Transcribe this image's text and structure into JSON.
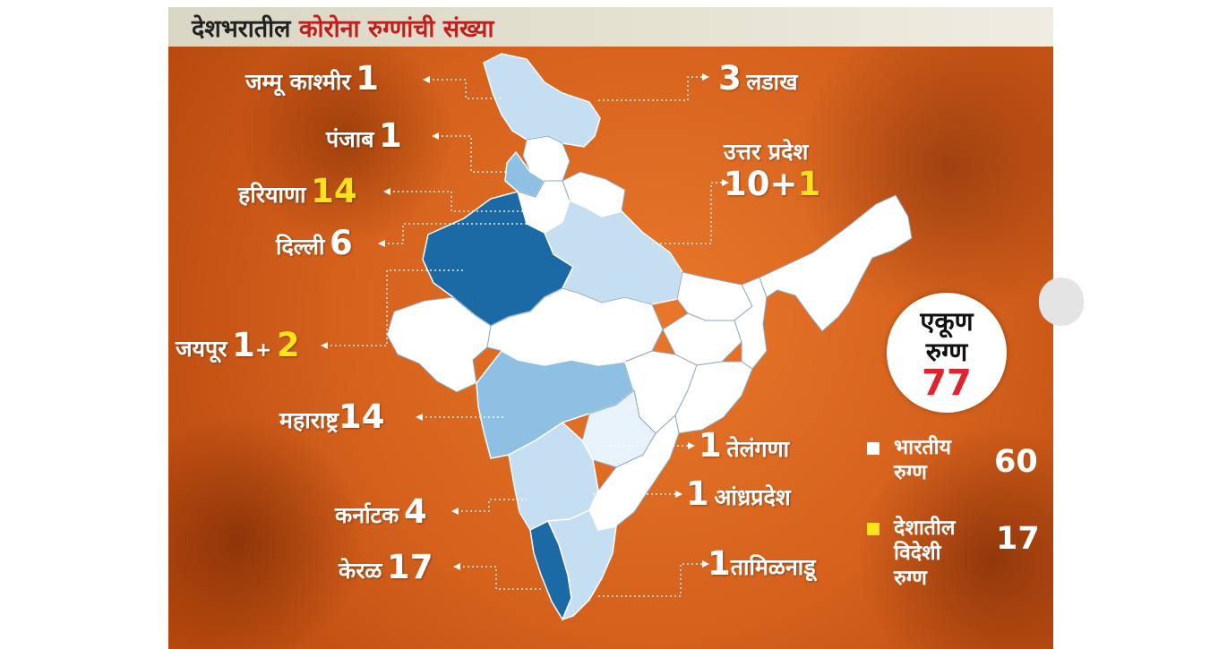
{
  "title": {
    "part1": "देशभरातील",
    "part2": "कोरोना रुग्णांची संख्या"
  },
  "states": {
    "jammu_kashmir": {
      "name": "जम्मू काश्मीर",
      "count": "1"
    },
    "punjab": {
      "name": "पंजाब",
      "count": "1"
    },
    "haryana": {
      "name": "हरियाणा",
      "count": "14"
    },
    "delhi": {
      "name": "दिल्ली",
      "count": "6"
    },
    "jaipur": {
      "name": "जयपूर",
      "count": "1",
      "plus": "+",
      "foreign": "2"
    },
    "maharashtra": {
      "name": "महाराष्ट्र",
      "count": "14"
    },
    "karnataka": {
      "name": "कर्नाटक",
      "count": "4"
    },
    "kerala": {
      "name": "केरळ",
      "count": "17"
    },
    "ladakh": {
      "name": "लडाख",
      "count": "3"
    },
    "uttar_pradesh": {
      "name": "उत्तर प्रदेश",
      "count": "10",
      "plus": "+",
      "foreign": "1"
    },
    "telangana": {
      "name": "तेलंगणा",
      "count": "1"
    },
    "andhra_pradesh": {
      "name": "आंध्रप्रदेश",
      "count": "1"
    },
    "tamil_nadu": {
      "name": "तामिळनाडू",
      "count": "1"
    }
  },
  "total": {
    "line1": "एकूण",
    "line2": "रुग्ण",
    "value": "77"
  },
  "legend": {
    "indian": {
      "line1": "भारतीय",
      "line2": "रुग्ण",
      "value": "60",
      "color": "#ffffff"
    },
    "foreign": {
      "line1": "देशातील",
      "line2": "विदेशी",
      "line3": "रुग्ण",
      "value": "17",
      "color": "#ffe21a"
    }
  },
  "colors": {
    "dark_state": "#1b6aa6",
    "mid_state": "#8ec0e4",
    "light_state": "#c6def2",
    "pale_state": "#e8f2fb",
    "white_state": "#ffffff",
    "highlight": "#ffe21a",
    "total": "#e0242d"
  }
}
